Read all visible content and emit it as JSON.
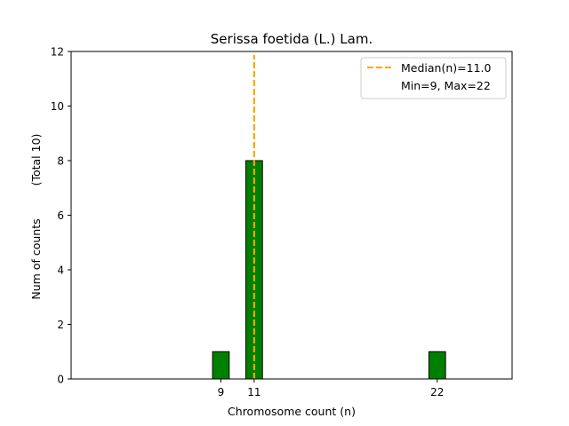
{
  "chart_data": {
    "type": "bar",
    "title": "Serissa foetida (L.) Lam.",
    "xlabel": "Chromosome count (n)",
    "ylabel": "Num of counts",
    "ylabel_note": "(Total 10)",
    "xlim": [
      0,
      26.5
    ],
    "ylim": [
      0,
      12
    ],
    "yticks": [
      0,
      2,
      4,
      6,
      8,
      10,
      12
    ],
    "xticks": [
      9,
      11,
      22
    ],
    "bar_width": 1,
    "bar_color": "#008000",
    "bar_edge_color": "#000000",
    "bars": [
      {
        "x": 9,
        "count": 1
      },
      {
        "x": 11,
        "count": 8
      },
      {
        "x": 22,
        "count": 1
      }
    ],
    "median": {
      "value": 11.0,
      "color": "#FFA500",
      "style": "dashed"
    },
    "legend": {
      "position": "top-right",
      "entries": [
        "Median(n)=11.0",
        "Min=9, Max=22"
      ]
    }
  }
}
